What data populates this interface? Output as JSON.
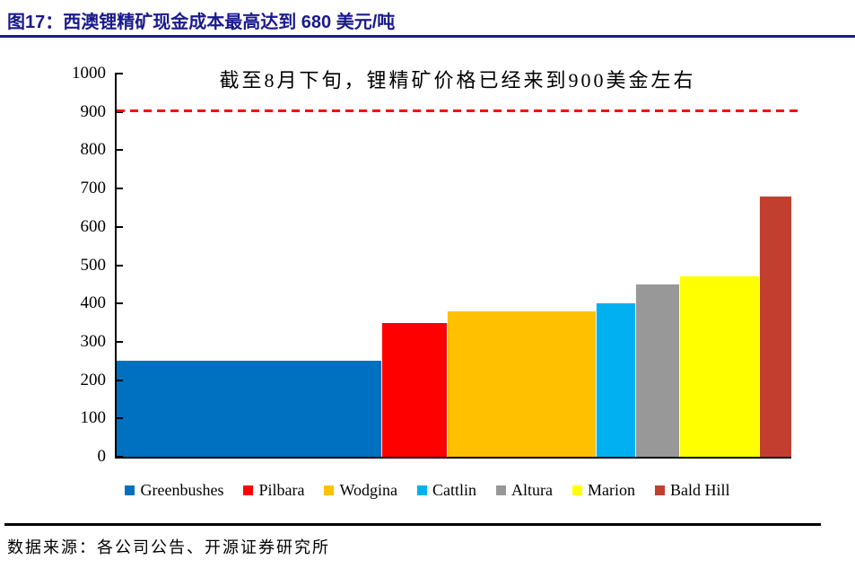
{
  "page": {
    "title": "图17：西澳锂精矿现金成本最高达到 680 美元/吨",
    "source": "数据来源：各公司公告、开源证券研究所"
  },
  "colors": {
    "title": "#1A1A8C",
    "title_rule": "#1A1A8C",
    "axis": "#000000",
    "separator": "#000000",
    "reference_line": "#FF0000"
  },
  "chart_data": {
    "type": "bar",
    "variant": "variable_width_cost_curve",
    "title": "",
    "annotation": "截至8月下旬，锂精矿价格已经来到900美金左右",
    "unit": "美元/吨",
    "xlabel": "",
    "ylabel": "",
    "ylim": [
      0,
      1000
    ],
    "y_ticks": [
      0,
      100,
      200,
      300,
      400,
      500,
      600,
      700,
      800,
      900,
      1000
    ],
    "grid": false,
    "legend_position": "bottom",
    "reference_line": {
      "value": 905,
      "style": "dashed",
      "color": "#FF0000"
    },
    "series": [
      {
        "name": "Greenbushes",
        "value": 250,
        "width_weight": 295,
        "color": "#0070C0"
      },
      {
        "name": "Pilbara",
        "value": 350,
        "width_weight": 72,
        "color": "#FF0000"
      },
      {
        "name": "Wodgina",
        "value": 380,
        "width_weight": 166,
        "color": "#FFC000"
      },
      {
        "name": "Cattlin",
        "value": 400,
        "width_weight": 43,
        "color": "#00B0F0"
      },
      {
        "name": "Altura",
        "value": 450,
        "width_weight": 48,
        "color": "#989898",
        "pattern": "crosshatch"
      },
      {
        "name": "Marion",
        "value": 470,
        "width_weight": 88,
        "color": "#FFFF00"
      },
      {
        "name": "Bald Hill",
        "value": 680,
        "width_weight": 35,
        "color": "#C23F30"
      }
    ]
  }
}
